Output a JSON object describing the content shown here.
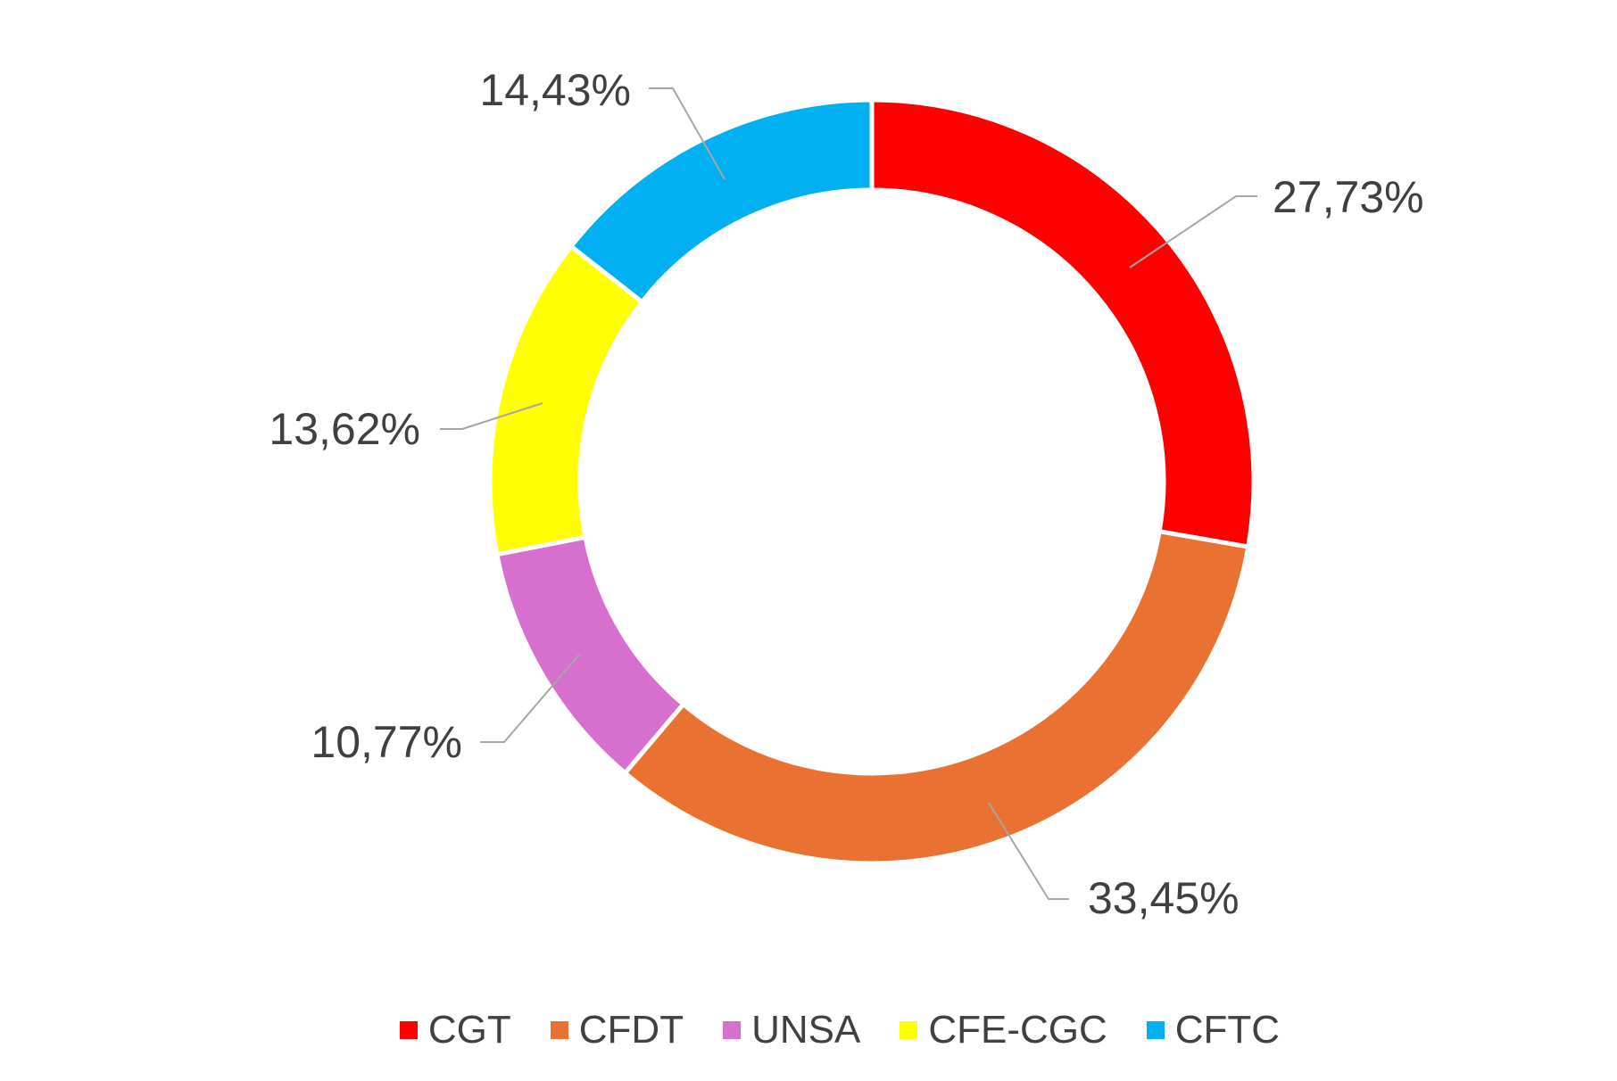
{
  "chart_data": {
    "type": "pie",
    "donut": true,
    "categories": [
      "CGT",
      "CFDT",
      "UNSA",
      "CFE-CGC",
      "CFTC"
    ],
    "values": [
      27.73,
      33.45,
      10.77,
      13.62,
      14.43
    ],
    "data_labels": [
      "27,73%",
      "33,45%",
      "10,77%",
      "13,62%",
      "14,43%"
    ],
    "colors": [
      "#FF0000",
      "#E97132",
      "#D76FCF",
      "#FFFF00",
      "#00B0F0"
    ],
    "start_angle": "top, clockwise",
    "legend_position": "bottom"
  }
}
